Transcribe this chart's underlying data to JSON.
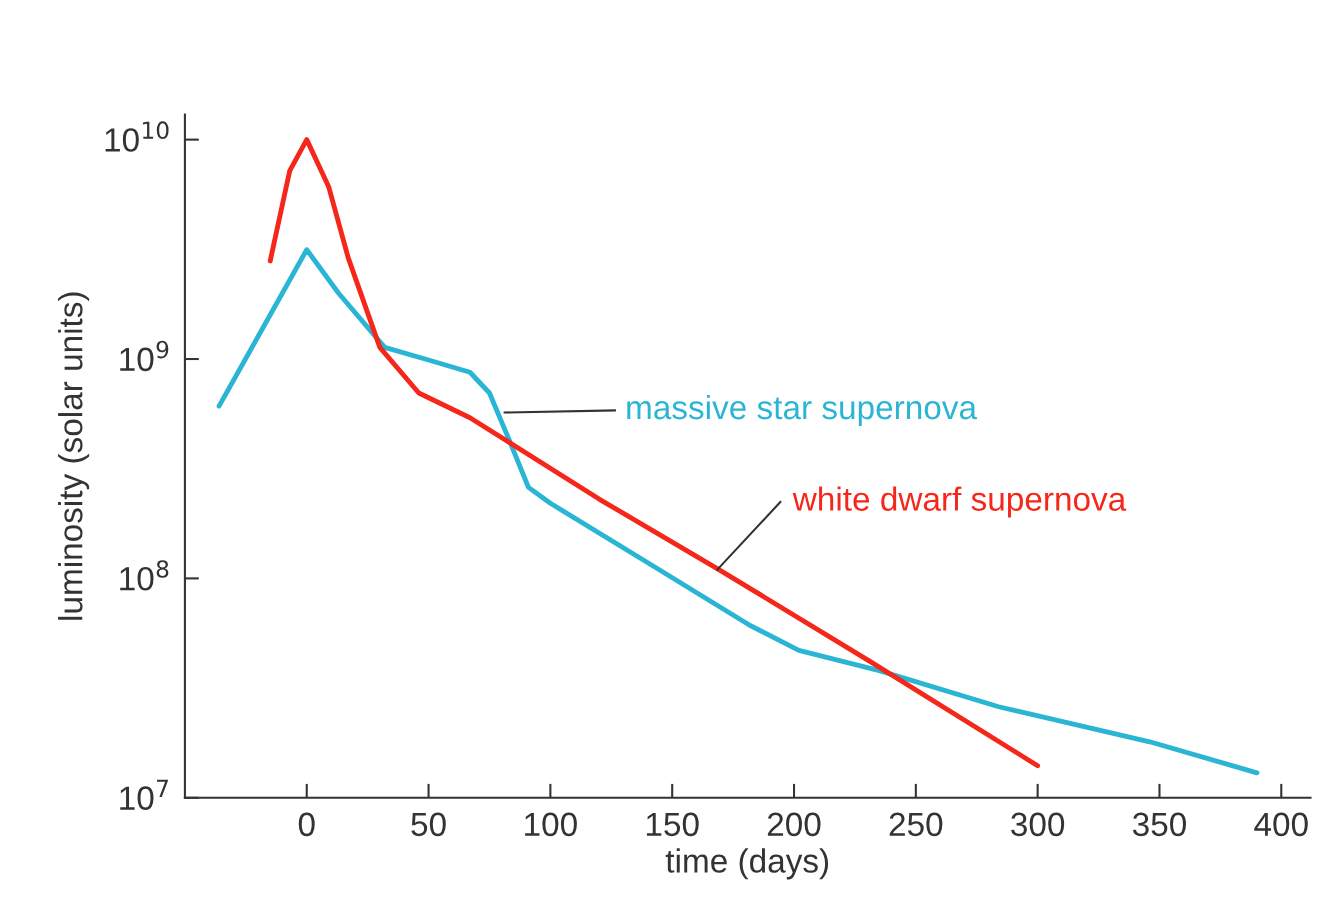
{
  "chart_data": {
    "type": "line",
    "xlabel": "time (days)",
    "ylabel": "luminosity (solar units)",
    "log": "y",
    "xlim": [
      -50,
      412
    ],
    "xticks": [
      0,
      50,
      100,
      150,
      200,
      250,
      300,
      350,
      400
    ],
    "ylim": [
      10000000,
      13000000000
    ],
    "yticks": [
      {
        "value": 10000000,
        "label": "10$^{7}$"
      },
      {
        "value": 100000000,
        "label": "10$^{8}$"
      },
      {
        "value": 1000000000,
        "label": "10$^{9}$"
      },
      {
        "value": 10000000000,
        "label": "10$^{10}$"
      }
    ],
    "grid": false,
    "legend": false,
    "marker": "none",
    "line_style": "solid",
    "series": [
      {
        "name": "massive star supernova",
        "color": "#29b5d3",
        "x": [
          -36,
          0,
          13,
          32,
          50,
          67,
          75,
          83,
          91,
          100,
          141,
          182,
          202,
          235,
          284,
          346,
          390
        ],
        "values": [
          610000000,
          3150000000,
          2000000000,
          1130000000,
          990000000,
          870000000,
          700000000,
          430000000,
          260000000,
          220000000,
          116000000,
          61000000,
          47000000,
          38000000,
          26000000,
          18000000,
          13000000
        ]
      },
      {
        "name": "white dwarf supernova",
        "color": "#f4271a",
        "x": [
          -15,
          -7,
          0,
          9,
          17,
          30,
          46,
          67,
          120,
          169,
          231,
          300
        ],
        "values": [
          2800000000,
          7200000000,
          10000000000,
          6100000000,
          2900000000,
          1130000000,
          700000000,
          540000000,
          230000000,
          110000000,
          42000000,
          14000000
        ]
      }
    ]
  }
}
